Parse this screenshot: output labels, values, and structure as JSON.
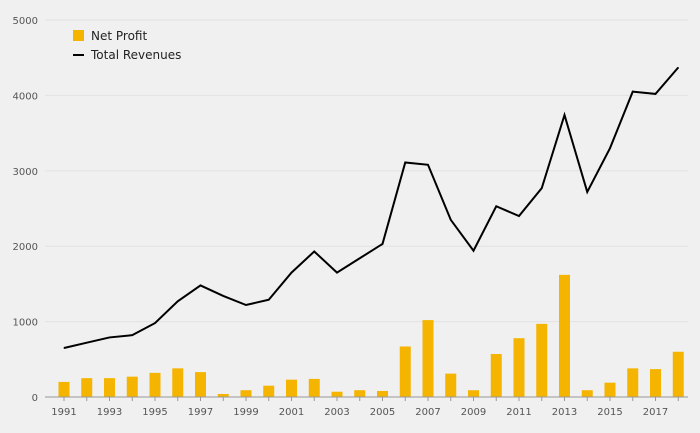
{
  "chart_data": {
    "type": "bar",
    "x": [
      1991,
      1992,
      1993,
      1994,
      1995,
      1996,
      1997,
      1998,
      1999,
      2000,
      2001,
      2002,
      2003,
      2004,
      2005,
      2006,
      2007,
      2008,
      2009,
      2010,
      2011,
      2012,
      2013,
      2014,
      2015,
      2016,
      2017,
      2018
    ],
    "x_tick_labels": [
      "1991",
      "1993",
      "1995",
      "1997",
      "1999",
      "2001",
      "2003",
      "2005",
      "2007",
      "2009",
      "2011",
      "2013",
      "2015",
      "2017"
    ],
    "y_tick_labels": [
      "0",
      "1000",
      "2000",
      "3000",
      "4000",
      "5000"
    ],
    "ylim": [
      0,
      5000
    ],
    "grid": true,
    "legend_position": "top-left",
    "series": [
      {
        "name": "Net Profit",
        "type": "bar",
        "color": "#f5b400",
        "values": [
          200,
          250,
          250,
          270,
          320,
          380,
          330,
          40,
          90,
          150,
          230,
          240,
          70,
          90,
          80,
          670,
          1020,
          310,
          90,
          570,
          780,
          970,
          1620,
          90,
          190,
          380,
          370,
          600
        ]
      },
      {
        "name": "Total Revenues",
        "type": "line",
        "color": "#000000",
        "values": [
          650,
          720,
          790,
          820,
          980,
          1270,
          1480,
          1340,
          1220,
          1290,
          1650,
          1930,
          1650,
          1840,
          2030,
          3110,
          3080,
          2350,
          1940,
          2530,
          2400,
          2770,
          3740,
          2720,
          3300,
          4050,
          4020,
          4370
        ]
      }
    ],
    "title": "",
    "xlabel": "",
    "ylabel": ""
  }
}
